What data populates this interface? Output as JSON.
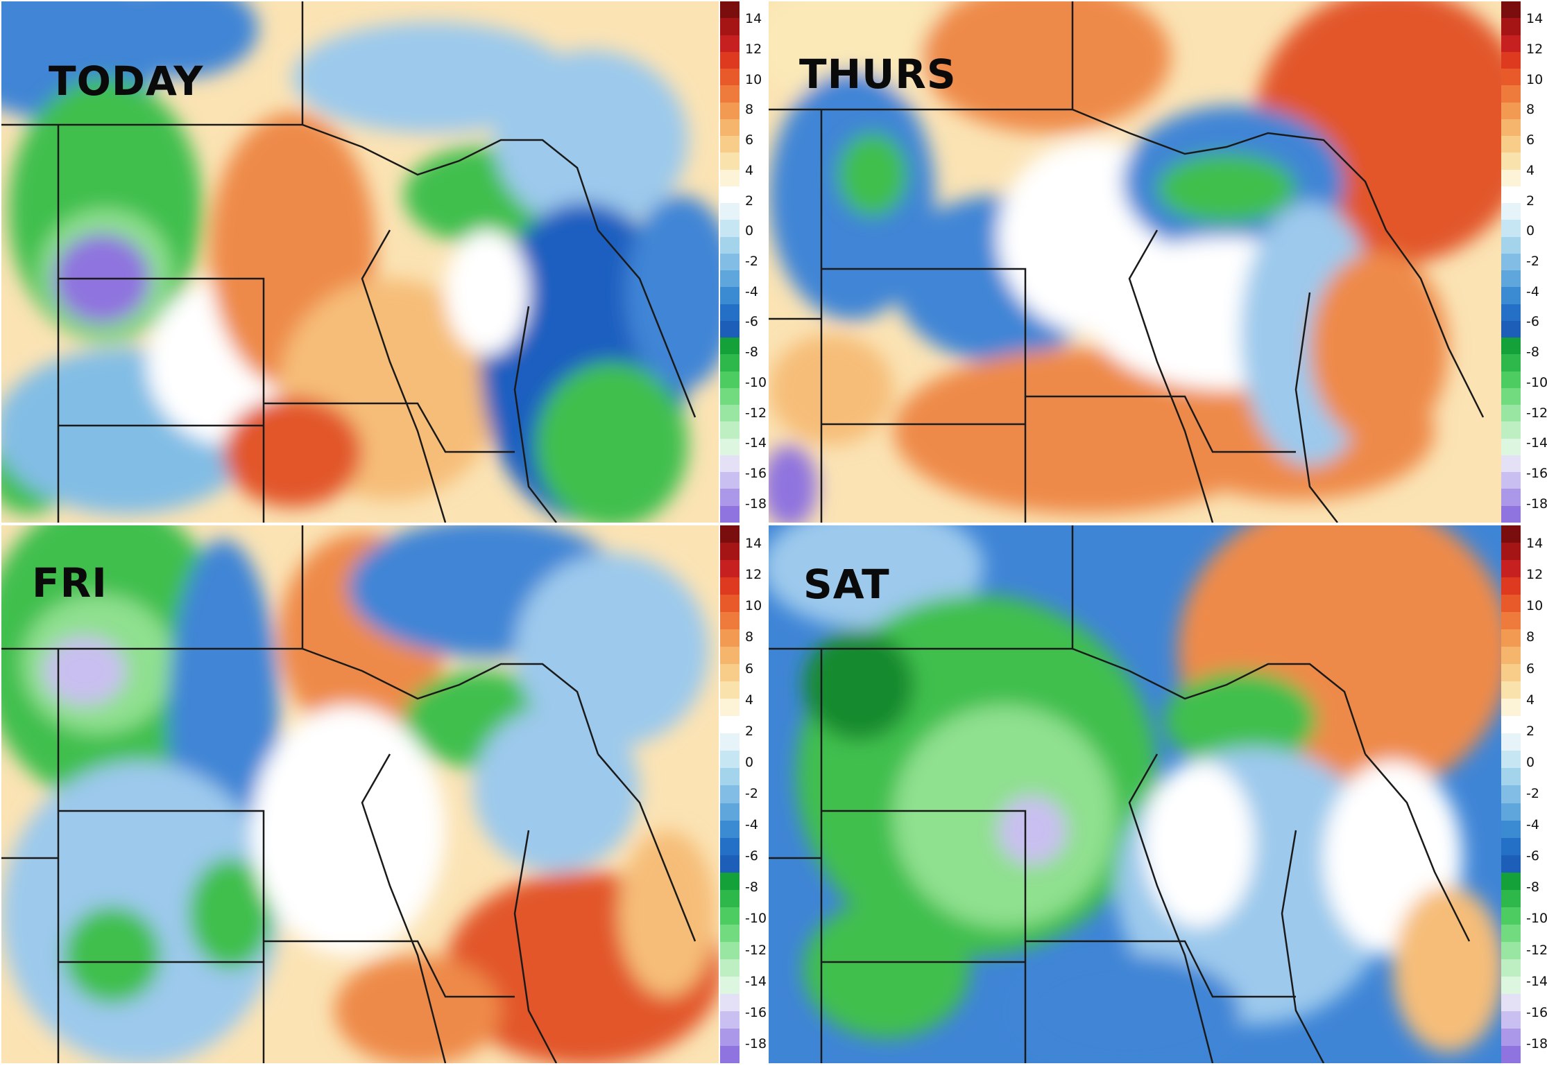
{
  "panels": [
    {
      "id": "today",
      "label": "TODAY"
    },
    {
      "id": "thurs",
      "label": "THURS"
    },
    {
      "id": "fri",
      "label": "FRI"
    },
    {
      "id": "sat",
      "label": "SAT"
    }
  ],
  "colorbar": {
    "ticks": [
      "14",
      "12",
      "10",
      "8",
      "6",
      "4",
      "2",
      "0",
      "-2",
      "-4",
      "-6",
      "-8",
      "-10",
      "-12",
      "-14",
      "-16",
      "-18"
    ],
    "colors": [
      "#7a0e0e",
      "#a51515",
      "#c62020",
      "#dd3a1f",
      "#e85a2a",
      "#ee7a3c",
      "#f39a52",
      "#f6b56c",
      "#f8cd8a",
      "#fae2ac",
      "#fdf3d6",
      "#ffffff",
      "#e6f4fa",
      "#c6e6f3",
      "#a4d3ec",
      "#82bde5",
      "#5ea6dc",
      "#3b8bd2",
      "#2470c6",
      "#1d5eb8",
      "#15a13a",
      "#2eb84b",
      "#4ccc61",
      "#72db80",
      "#98e6a2",
      "#bdefc3",
      "#dcf6df",
      "#e4e0f6",
      "#c9bff0",
      "#ab98e8",
      "#8f73df"
    ]
  },
  "palette": {
    "green_dark": "#178a2e",
    "green": "#3fbf4e",
    "green_light": "#8fe08f",
    "blue_dark": "#1f5fc0",
    "blue": "#3f85d6",
    "blue_light": "#9cc9ec",
    "white": "#ffffff",
    "cream": "#fbe9b8",
    "orange_light": "#f6bd78",
    "orange": "#ee8a4a",
    "red": "#e2562a",
    "purple": "#8f73df",
    "purple_light": "#c9bff0"
  }
}
